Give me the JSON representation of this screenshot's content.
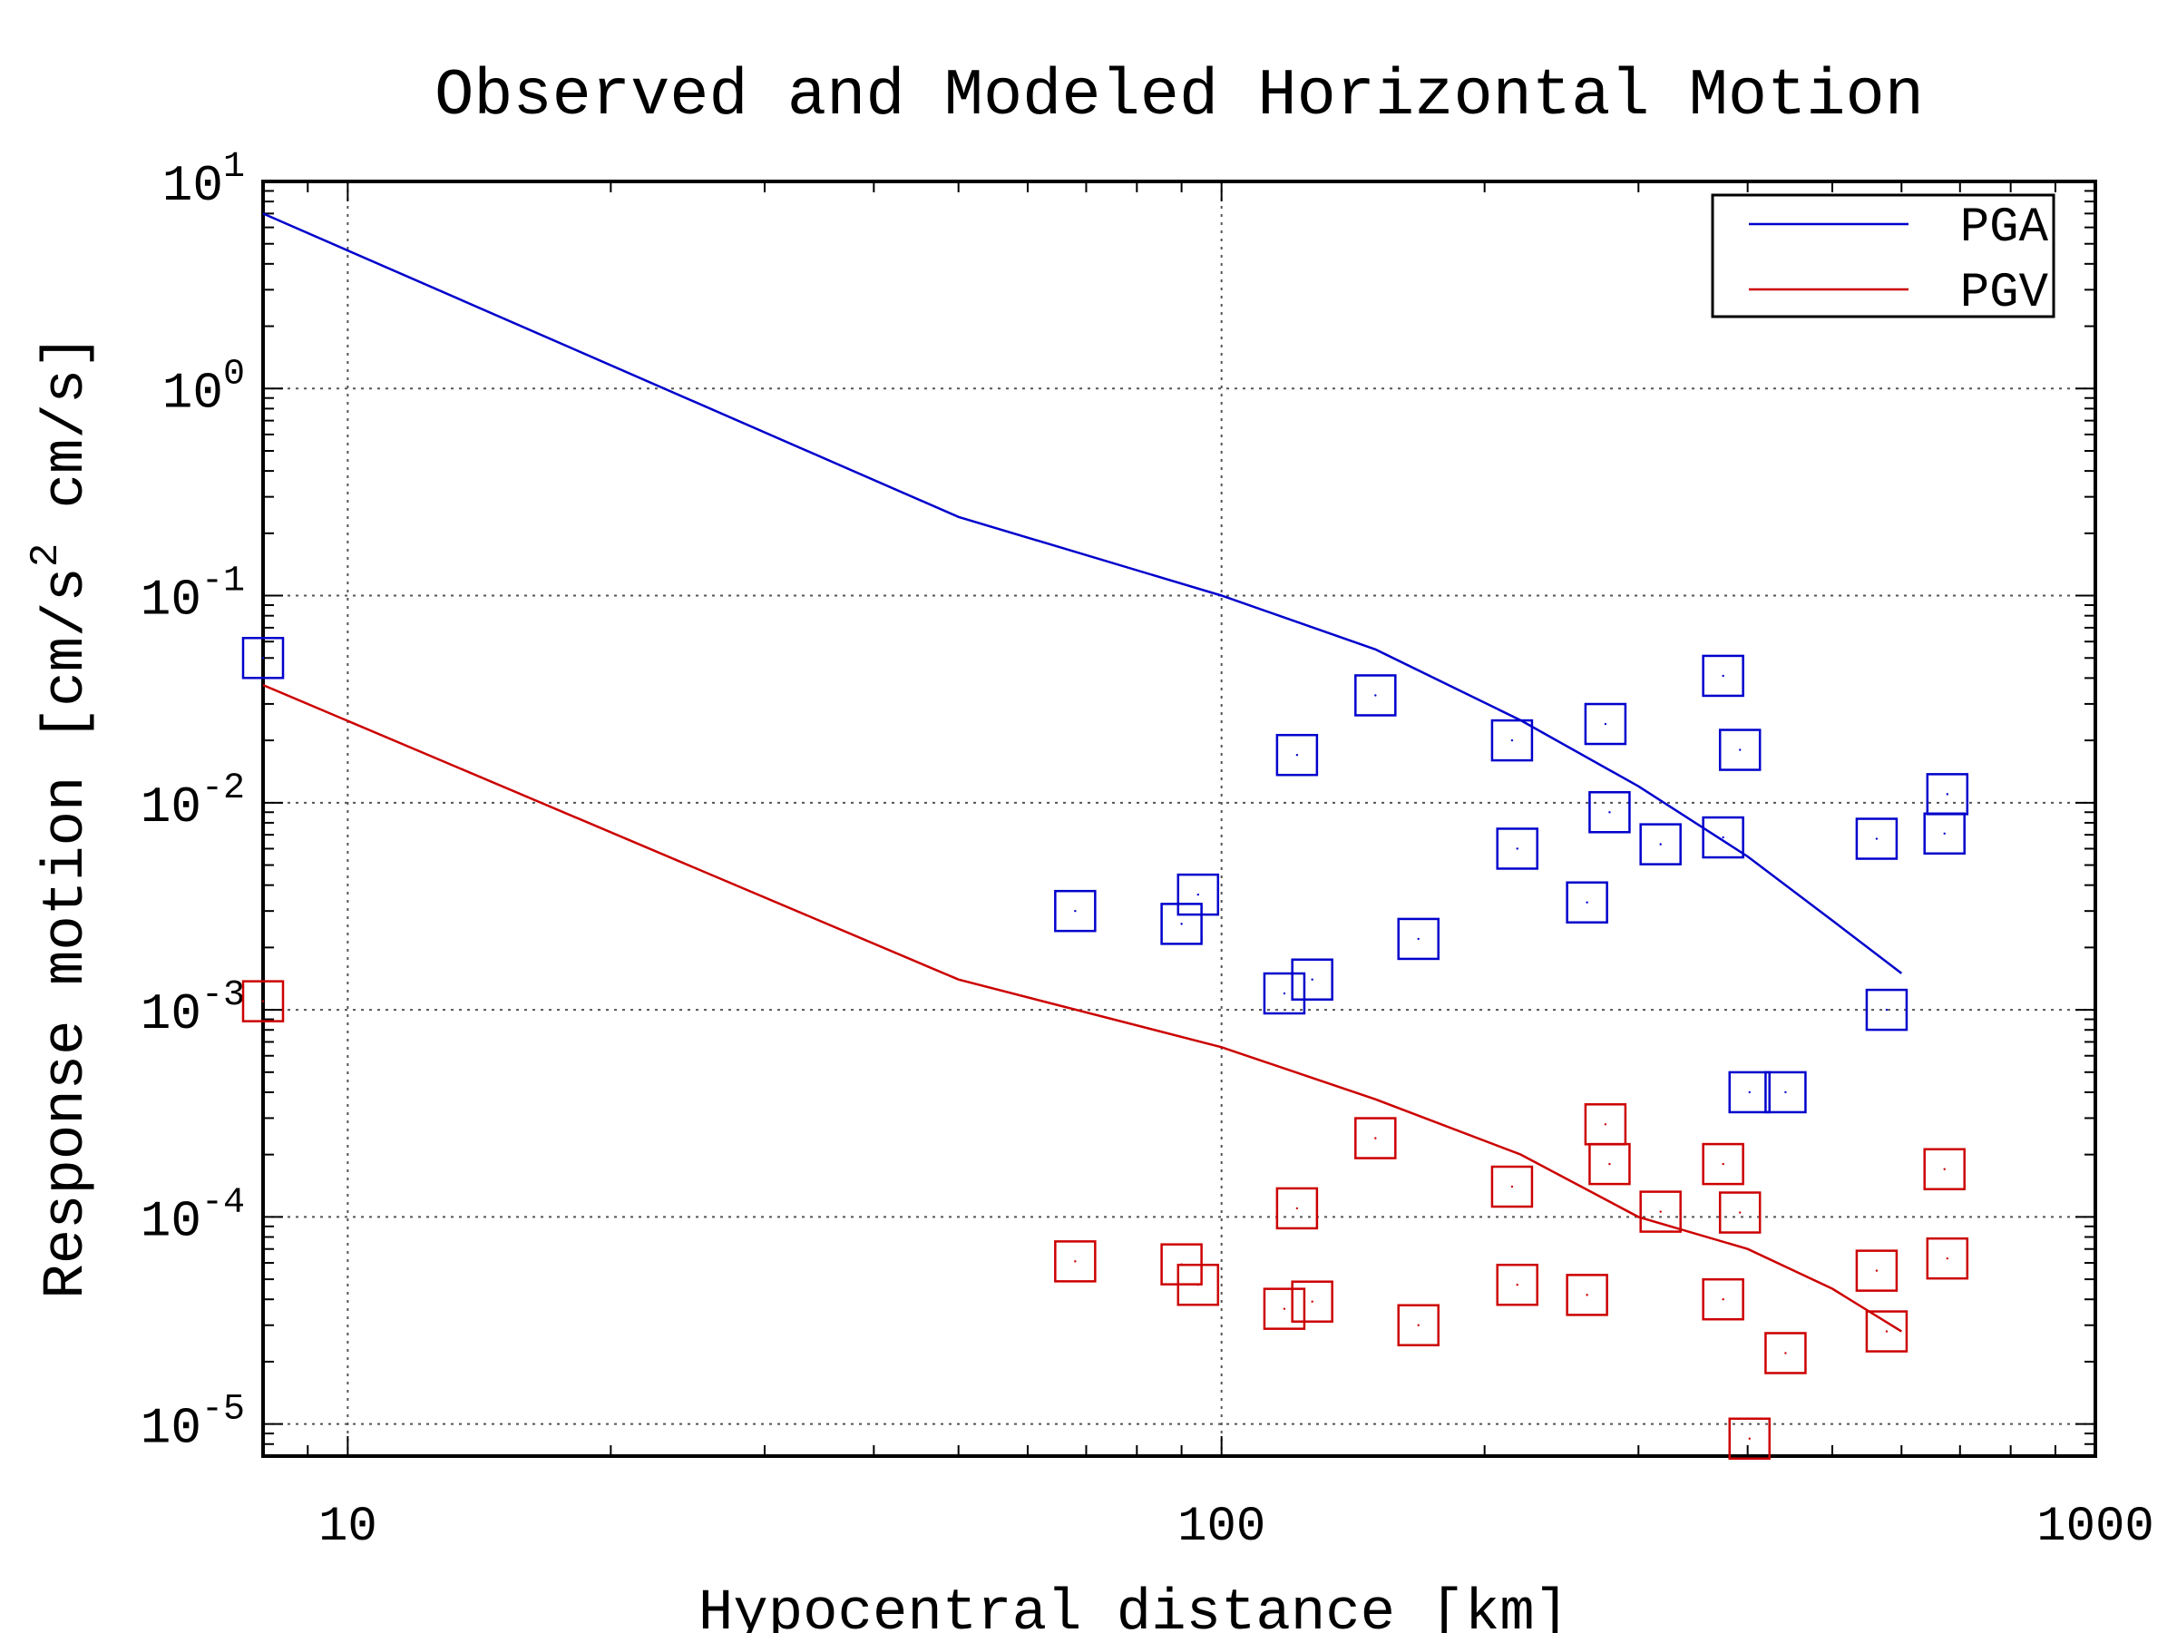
{
  "chart_data": {
    "type": "scatter",
    "title": "Observed and Modeled Horizontal Motion",
    "xlabel": "Hypocentral distance [km]",
    "ylabel_parts": [
      "Response motion [cm/s",
      "2",
      " cm/s]"
    ],
    "x_scale": "log",
    "y_scale": "log",
    "xlim": [
      8,
      1000
    ],
    "ylim": [
      7e-06,
      10
    ],
    "grid": true,
    "legend_position": "top-right",
    "x_ticks": [
      {
        "value": 10,
        "label": "10"
      },
      {
        "value": 100,
        "label": "100"
      },
      {
        "value": 1000,
        "label": "1000"
      }
    ],
    "y_ticks": [
      {
        "value": 10,
        "base": "10",
        "exp": "1"
      },
      {
        "value": 1,
        "base": "10",
        "exp": "0"
      },
      {
        "value": 0.1,
        "base": "10",
        "exp": "-1"
      },
      {
        "value": 0.01,
        "base": "10",
        "exp": "-2"
      },
      {
        "value": 0.001,
        "base": "10",
        "exp": "-3"
      },
      {
        "value": 0.0001,
        "base": "10",
        "exp": "-4"
      },
      {
        "value": 1e-05,
        "base": "10",
        "exp": "-5"
      }
    ],
    "series": [
      {
        "name": "PGA",
        "color": "#0000cc",
        "model_line": [
          [
            8,
            7.0
          ],
          [
            50,
            0.24
          ],
          [
            100,
            0.1
          ],
          [
            150,
            0.055
          ],
          [
            220,
            0.025
          ],
          [
            300,
            0.012
          ],
          [
            400,
            0.0055
          ],
          [
            500,
            0.0027
          ],
          [
            600,
            0.0015
          ]
        ],
        "observations": [
          [
            8,
            0.05
          ],
          [
            68,
            0.003
          ],
          [
            90,
            0.0026
          ],
          [
            94,
            0.0036
          ],
          [
            118,
            0.0012
          ],
          [
            122,
            0.017
          ],
          [
            127,
            0.0014
          ],
          [
            150,
            0.033
          ],
          [
            168,
            0.0022
          ],
          [
            215,
            0.02
          ],
          [
            218,
            0.006
          ],
          [
            262,
            0.0033
          ],
          [
            275,
            0.024
          ],
          [
            278,
            0.009
          ],
          [
            318,
            0.0063
          ],
          [
            375,
            0.041
          ],
          [
            375,
            0.0068
          ],
          [
            392,
            0.018
          ],
          [
            402,
            0.0004
          ],
          [
            442,
            0.0004
          ],
          [
            562,
            0.0067
          ],
          [
            577,
            0.001
          ],
          [
            672,
            0.0071
          ],
          [
            677,
            0.011
          ]
        ]
      },
      {
        "name": "PGV",
        "color": "#cc0000",
        "model_line": [
          [
            8,
            0.037
          ],
          [
            50,
            0.0014
          ],
          [
            100,
            0.00066
          ],
          [
            150,
            0.00037
          ],
          [
            220,
            0.0002
          ],
          [
            300,
            0.0001
          ],
          [
            400,
            7e-05
          ],
          [
            500,
            4.5e-05
          ],
          [
            600,
            2.8e-05
          ]
        ],
        "observations": [
          [
            8,
            0.0011
          ],
          [
            68,
            6.1e-05
          ],
          [
            90,
            5.9e-05
          ],
          [
            94,
            4.7e-05
          ],
          [
            118,
            3.6e-05
          ],
          [
            122,
            0.00011
          ],
          [
            127,
            3.9e-05
          ],
          [
            150,
            0.00024
          ],
          [
            168,
            3e-05
          ],
          [
            215,
            0.00014
          ],
          [
            218,
            4.7e-05
          ],
          [
            262,
            4.2e-05
          ],
          [
            275,
            0.00028
          ],
          [
            278,
            0.00018
          ],
          [
            318,
            0.000106
          ],
          [
            375,
            0.00018
          ],
          [
            375,
            4e-05
          ],
          [
            392,
            0.000105
          ],
          [
            402,
            8.5e-06
          ],
          [
            442,
            2.2e-05
          ],
          [
            562,
            5.5e-05
          ],
          [
            577,
            2.8e-05
          ],
          [
            672,
            0.00017
          ],
          [
            677,
            6.3e-05
          ]
        ]
      }
    ]
  }
}
